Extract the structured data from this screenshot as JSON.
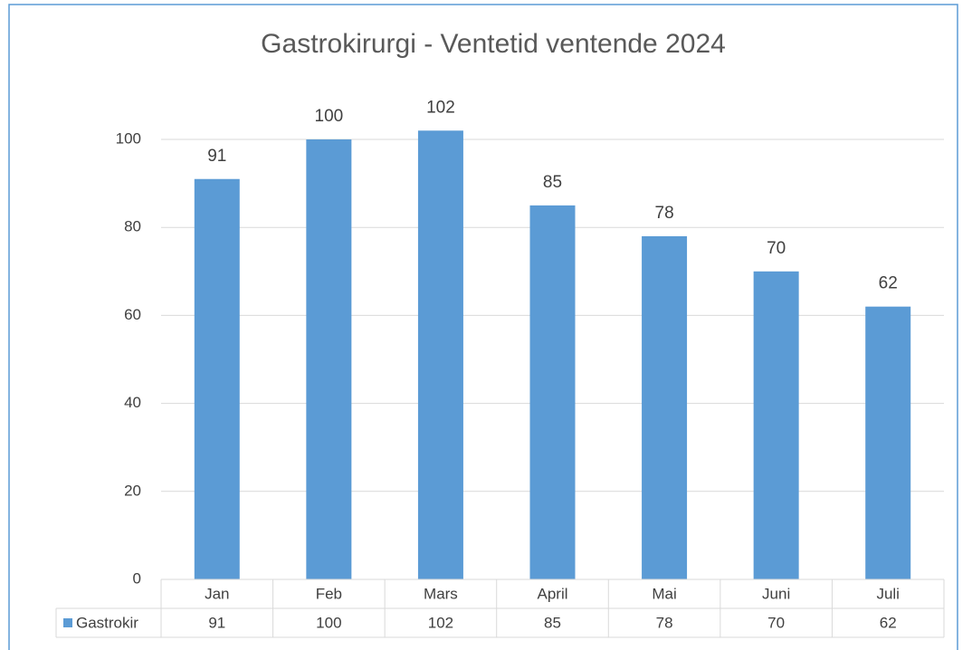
{
  "chart_data": {
    "type": "bar",
    "title": "Gastrokirurgi - Ventetid ventende 2024",
    "categories": [
      "Jan",
      "Feb",
      "Mars",
      "April",
      "Mai",
      "Juni",
      "Juli"
    ],
    "series": [
      {
        "name": "Gastrokir",
        "color": "#5b9bd5",
        "values": [
          91,
          100,
          102,
          85,
          78,
          70,
          62
        ]
      }
    ],
    "ylim": [
      0,
      100
    ],
    "yticks": [
      0,
      20,
      40,
      60,
      80,
      100
    ],
    "grid": true
  }
}
